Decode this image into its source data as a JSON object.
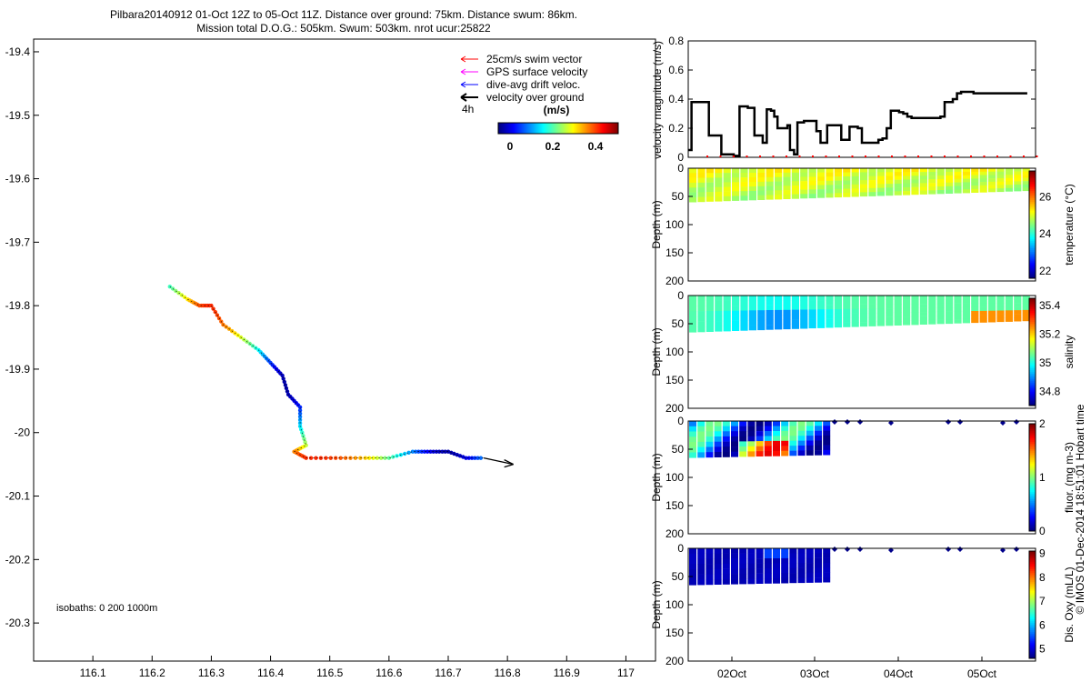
{
  "title": {
    "line1": "Pilbara20140912 01-Oct 12Z to 05-Oct 11Z. Distance over ground: 75km. Distance swum: 86km.",
    "line2": "Mission total D.O.G.: 505km. Swum: 503km. nrot ucur:25822"
  },
  "legend": {
    "items": [
      {
        "label": "25cm/s swim vector",
        "color": "#ff0000"
      },
      {
        "label": "GPS surface velocity",
        "color": "#ff00ff"
      },
      {
        "label": "dive-avg drift veloc.",
        "color": "#0000ff"
      },
      {
        "label": "velocity over ground",
        "color": "#000000"
      }
    ],
    "interval": "4h",
    "colorbar_title": "(m/s)",
    "colorbar_ticks": [
      "0",
      "0.2",
      "0.4"
    ]
  },
  "isobaths": "isobaths: 0    200  1000m",
  "credit": "© IMOS 01-Dec-2014 18:51:01 Hobart time",
  "chart_data": [
    {
      "type": "scatter",
      "name": "track",
      "xlim": [
        116.0,
        117.05
      ],
      "ylim": [
        -20.36,
        -19.38
      ],
      "xticks": [
        "116.1",
        "116.2",
        "116.3",
        "116.4",
        "116.5",
        "116.6",
        "116.7",
        "116.8",
        "116.9",
        "117"
      ],
      "yticks": [
        "-19.4",
        "-19.5",
        "-19.6",
        "-19.7",
        "-19.8",
        "-19.9",
        "-20",
        "-20.1",
        "-20.2",
        "-20.3"
      ],
      "track": [
        [
          116.23,
          -19.77
        ],
        [
          116.26,
          -19.79
        ],
        [
          116.28,
          -19.8
        ],
        [
          116.3,
          -19.8
        ],
        [
          116.32,
          -19.83
        ],
        [
          116.35,
          -19.85
        ],
        [
          116.38,
          -19.87
        ],
        [
          116.4,
          -19.89
        ],
        [
          116.42,
          -19.91
        ],
        [
          116.43,
          -19.94
        ],
        [
          116.45,
          -19.96
        ],
        [
          116.45,
          -19.99
        ],
        [
          116.46,
          -20.02
        ],
        [
          116.44,
          -20.03
        ],
        [
          116.46,
          -20.04
        ],
        [
          116.51,
          -20.04
        ],
        [
          116.56,
          -20.04
        ],
        [
          116.6,
          -20.04
        ],
        [
          116.64,
          -20.03
        ],
        [
          116.67,
          -20.03
        ],
        [
          116.7,
          -20.03
        ],
        [
          116.73,
          -20.04
        ],
        [
          116.76,
          -20.04
        ]
      ],
      "arrow_to": [
        116.81,
        -20.05
      ]
    },
    {
      "type": "line",
      "name": "velocity",
      "ylabel": "velocity magnitude (m/s)",
      "ylim": [
        0,
        0.8
      ],
      "yticks": [
        "0",
        "0.2",
        "0.4",
        "0.6",
        "0.8"
      ],
      "xlim": [
        0,
        4.2
      ],
      "x": [
        0.0,
        0.04,
        0.06,
        0.2,
        0.25,
        0.35,
        0.4,
        0.45,
        0.55,
        0.6,
        0.62,
        0.68,
        0.72,
        0.8,
        0.9,
        0.95,
        1.0,
        1.04,
        1.08,
        1.2,
        1.23,
        1.28,
        1.32,
        1.36,
        1.4,
        1.44,
        1.52,
        1.55,
        1.6,
        1.65,
        1.68,
        1.8,
        1.85,
        1.9,
        1.95,
        2.0,
        2.05,
        2.1,
        2.15,
        2.3,
        2.35,
        2.4,
        2.45,
        2.55,
        2.6,
        2.65,
        2.7,
        2.8,
        2.85,
        2.95,
        3.0,
        3.05,
        3.1,
        3.15,
        3.2,
        3.25,
        3.3,
        3.45,
        3.5,
        3.55,
        3.6,
        3.65,
        3.7,
        3.8,
        3.85,
        3.9,
        3.95,
        4.0,
        4.05,
        4.1
      ],
      "y": [
        0.05,
        0.38,
        0.38,
        0.38,
        0.15,
        0.15,
        0.02,
        0.02,
        0.01,
        0.01,
        0.35,
        0.35,
        0.34,
        0.15,
        0.1,
        0.33,
        0.32,
        0.28,
        0.2,
        0.22,
        0.05,
        0.02,
        0.24,
        0.24,
        0.25,
        0.25,
        0.25,
        0.18,
        0.1,
        0.1,
        0.22,
        0.22,
        0.12,
        0.12,
        0.21,
        0.21,
        0.2,
        0.1,
        0.1,
        0.12,
        0.13,
        0.2,
        0.32,
        0.31,
        0.3,
        0.28,
        0.27,
        0.27,
        0.27,
        0.27,
        0.27,
        0.28,
        0.38,
        0.38,
        0.4,
        0.44,
        0.45,
        0.44,
        0.44,
        0.44,
        0.44,
        0.44,
        0.44,
        0.44,
        0.44,
        0.44,
        0.44,
        0.44,
        0.44,
        0.44
      ]
    },
    {
      "type": "heatmap",
      "name": "temperature",
      "ylabel": "Depth (m)",
      "cbar_label": "temperature (°C)",
      "ylim": [
        200,
        0
      ],
      "yticks": [
        "0",
        "50",
        "100",
        "150",
        "200"
      ],
      "clim": [
        21.6,
        27.4
      ],
      "cticks": [
        "22",
        "24",
        "26"
      ],
      "colorscale": "jet",
      "base_value": 25.0,
      "max_depth": [
        60,
        40
      ]
    },
    {
      "type": "heatmap",
      "name": "salinity",
      "ylabel": "Depth (m)",
      "cbar_label": "salinity",
      "ylim": [
        200,
        0
      ],
      "yticks": [
        "0",
        "50",
        "100",
        "150",
        "200"
      ],
      "clim": [
        34.7,
        35.45
      ],
      "cticks": [
        "34.8",
        "35",
        "35.2",
        "35.4"
      ],
      "colorscale": "jet",
      "base_value": 35.05,
      "max_depth": [
        65,
        45
      ]
    },
    {
      "type": "heatmap",
      "name": "fluorescence",
      "ylabel": "Depth (m)",
      "cbar_label": "fluor. (mg m-3)",
      "ylim": [
        200,
        0
      ],
      "yticks": [
        "0",
        "50",
        "100",
        "150",
        "200"
      ],
      "clim": [
        0,
        2
      ],
      "cticks": [
        "0",
        "1",
        "2"
      ],
      "colorscale": "jet",
      "base_value": 0.6,
      "max_depth": [
        65,
        60
      ]
    },
    {
      "type": "heatmap",
      "name": "oxygen",
      "ylabel": "Depth (m)",
      "cbar_label": "Dis. Oxy (mL/L)",
      "ylim": [
        200,
        0
      ],
      "yticks": [
        "0",
        "50",
        "100",
        "150",
        "200"
      ],
      "clim": [
        4.6,
        9.1
      ],
      "cticks": [
        "5",
        "6",
        "7",
        "8",
        "9"
      ],
      "colorscale": "jet",
      "base_value": 4.8,
      "max_depth": [
        65,
        60
      ]
    }
  ],
  "time_axis": {
    "labels": [
      "02Oct",
      "03Oct",
      "04Oct",
      "05Oct"
    ]
  }
}
